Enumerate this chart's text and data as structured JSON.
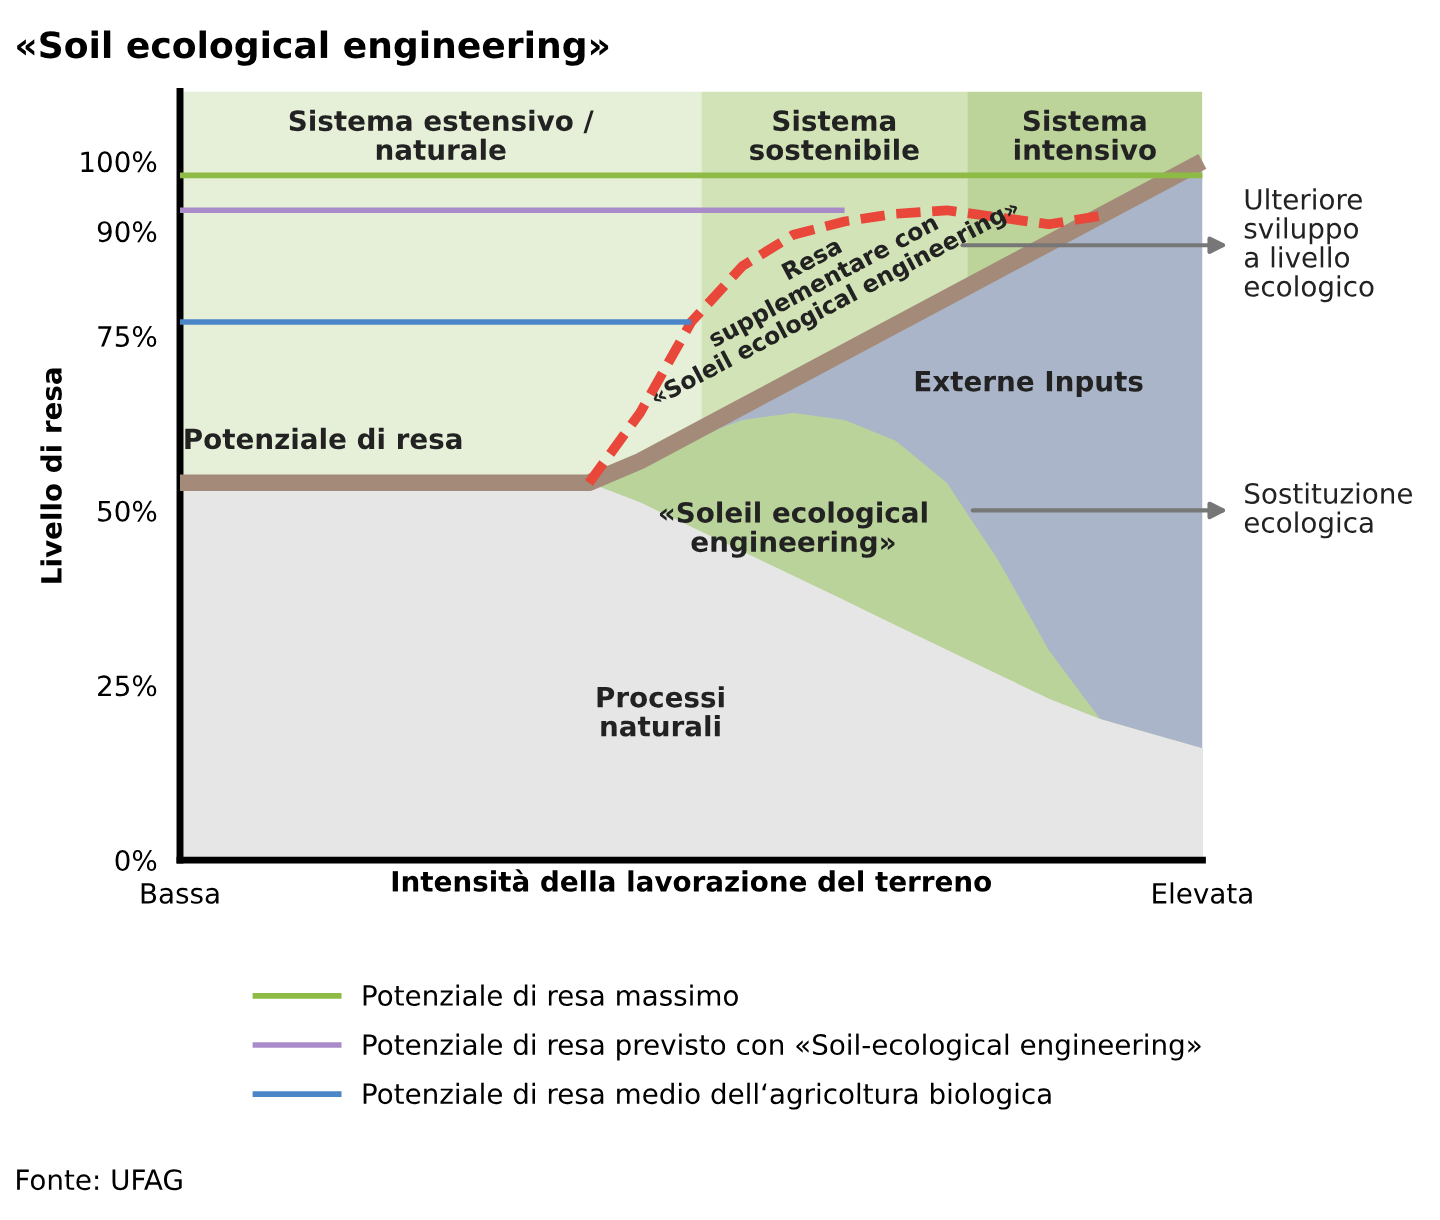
{
  "chart_data": {
    "type": "area",
    "title": "«Soil ecological engineering»",
    "xlabel": "Intensità della lavorazione del terreno",
    "ylabel": "Livello di resa",
    "categories": [
      "Bassa",
      null,
      null,
      null,
      null,
      null,
      null,
      null,
      null,
      null,
      null,
      null,
      null,
      null,
      null,
      null,
      null,
      null,
      null,
      null,
      "Elevata"
    ],
    "series": [
      {
        "color": "#aab5c9",
        "values": [
          null,
          null,
          null,
          null,
          null,
          null,
          null,
          null,
          54,
          57.1,
          61,
          64.9,
          68.8,
          72.7,
          76.6,
          80.5,
          84.4,
          88.3,
          92.2,
          96.1,
          100
        ]
      },
      {
        "color": "#b9d39a",
        "values": [
          null,
          null,
          null,
          null,
          null,
          null,
          null,
          null,
          54,
          56.5,
          60.3,
          63,
          64,
          63,
          60,
          54,
          43,
          30,
          20.2,
          18.1,
          16
        ]
      },
      {
        "color": "#e6e6e6",
        "values": [
          54,
          54,
          54,
          54,
          54,
          54,
          54,
          54,
          54,
          51.2,
          47.7,
          44.2,
          40.7,
          37.2,
          33.6,
          30.1,
          26.6,
          23.1,
          20.2,
          18.1,
          16
        ]
      },
      {
        "type": "line",
        "color": "#a48a78",
        "values": [
          54,
          54,
          54,
          54,
          54,
          54,
          54,
          54,
          54,
          57.1,
          61,
          64.9,
          68.8,
          72.7,
          76.6,
          80.5,
          84.4,
          88.3,
          92.2,
          96.1,
          100
        ]
      },
      {
        "type": "line",
        "color": "#e8473a",
        "line_style": "dashed",
        "values": [
          null,
          null,
          null,
          null,
          null,
          null,
          null,
          null,
          54,
          64,
          77,
          85,
          89.5,
          91.4,
          92.5,
          93,
          92,
          91,
          92.2,
          null,
          null
        ]
      },
      {
        "type": "line",
        "name": "Potenziale di resa massimo",
        "color": "#8dbb45",
        "values": [
          98,
          98,
          98,
          98,
          98,
          98,
          98,
          98,
          98,
          98,
          98,
          98,
          98,
          98,
          98,
          98,
          98,
          98,
          98,
          98,
          98
        ]
      },
      {
        "type": "line",
        "name": "Potenziale di resa previsto con «Soil-ecological engineering»",
        "color": "#a98bc9",
        "values": [
          93,
          93,
          93,
          93,
          93,
          93,
          93,
          93,
          93,
          93,
          93,
          93,
          93,
          93,
          null,
          null,
          null,
          null,
          null,
          null,
          null
        ]
      },
      {
        "type": "line",
        "name": "Potenziale di resa medio dell‘agricoltura biologica",
        "color": "#4a86c8",
        "values": [
          77,
          77,
          77,
          77,
          77,
          77,
          77,
          77,
          77,
          77,
          77,
          null,
          null,
          null,
          null,
          null,
          null,
          null,
          null,
          null,
          null
        ]
      }
    ],
    "ylim": [
      0,
      110
    ],
    "yticks": [
      {
        "value": 0,
        "label": "0%"
      },
      {
        "value": 25,
        "label": "25%"
      },
      {
        "value": 50,
        "label": "50%"
      },
      {
        "value": 75,
        "label": "75%"
      },
      {
        "value": 90,
        "label": "90%"
      },
      {
        "value": 100,
        "label": "100%"
      }
    ],
    "annotations": [
      "Potenziale di resa",
      "Resa\nsupplementare con\n«Soleil ecological engineering»",
      "Externe Inputs",
      "«Soleil ecological\nengineering»",
      "Processi\nnaturali",
      "Ulteriore\nsviluppo\na livello\necologico",
      "Sostituzione\necologica",
      "Sistema estensivo /\nnaturale",
      "Sistema\nsostenibile",
      "Sistema\nintensivo",
      "Fonte: UFAG"
    ],
    "legend": "bottom"
  }
}
